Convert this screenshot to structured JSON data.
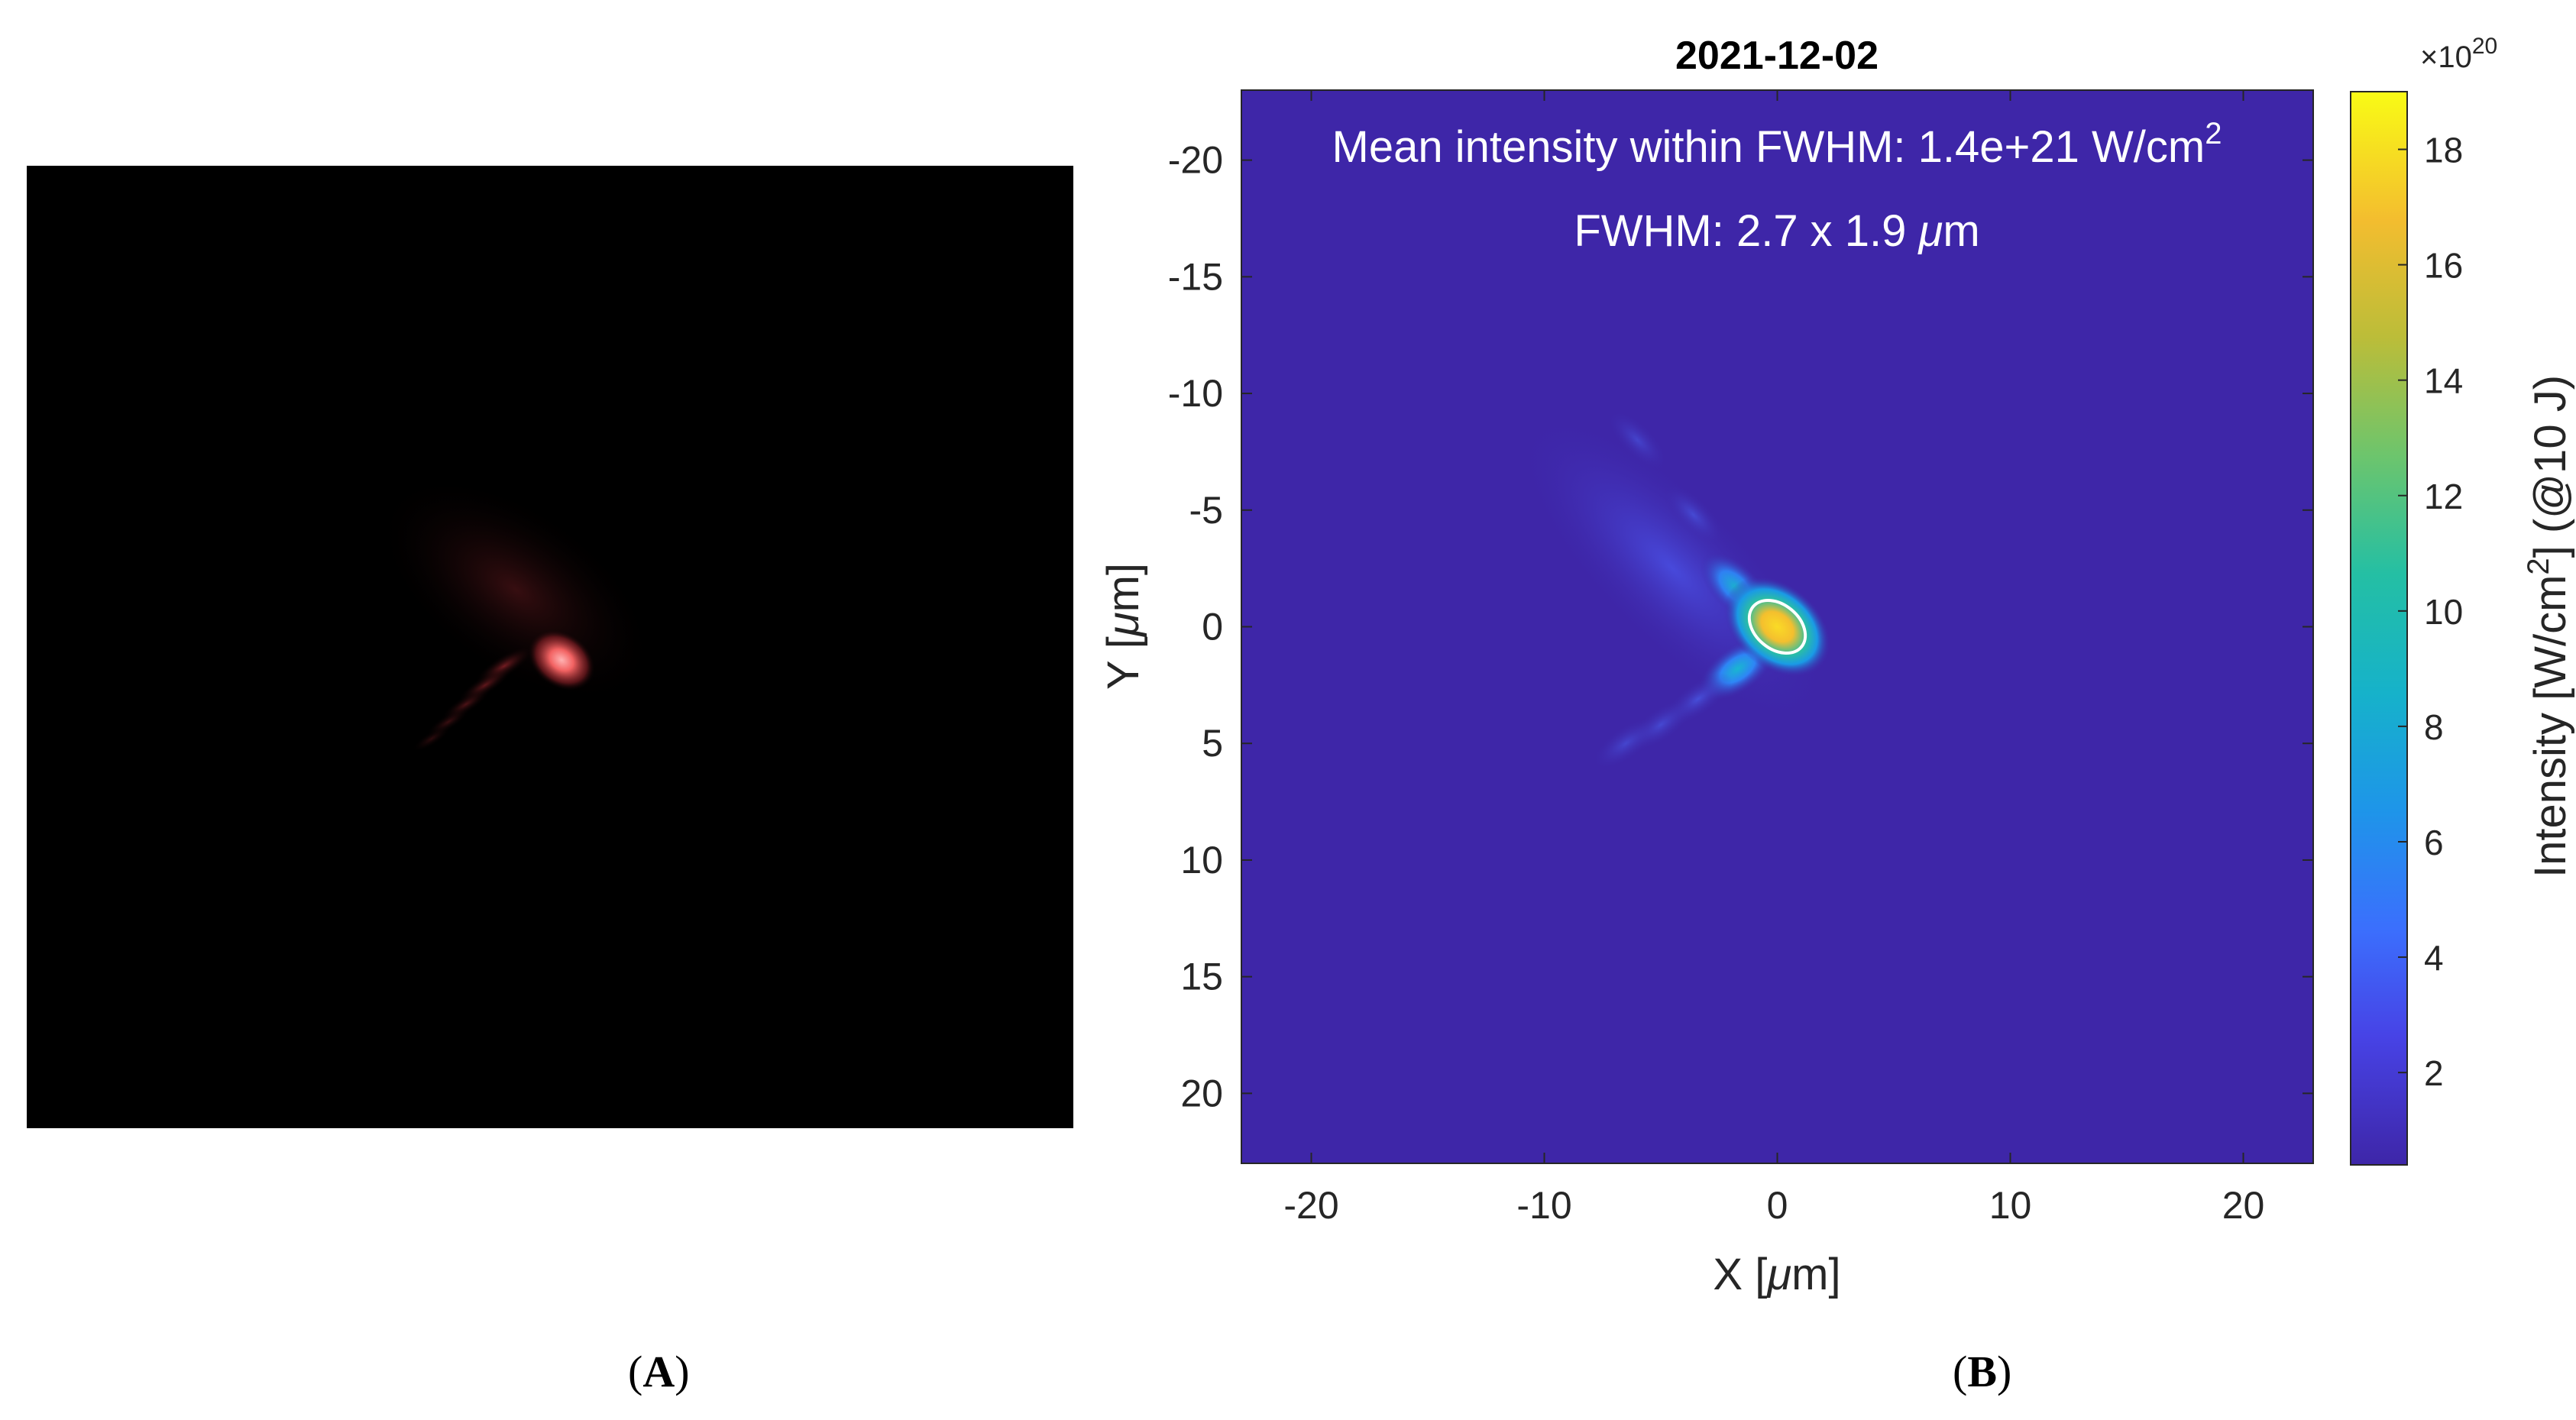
{
  "panel_a": {
    "caption_open": "(",
    "caption_letter": "A",
    "caption_close": ")"
  },
  "panel_b": {
    "caption_open": "(",
    "caption_letter": "B",
    "caption_close": ")"
  },
  "chart_data": {
    "type": "heatmap",
    "title": "2021-12-02",
    "annotations": {
      "mean_intensity_prefix": "Mean intensity within FWHM: 1.4e+21 W/cm",
      "mean_intensity_sup": "2",
      "fwhm_prefix": "FWHM: 2.7 x 1.9 ",
      "fwhm_mu": "μ",
      "fwhm_unit": "m"
    },
    "xlabel": {
      "prefix": "X [",
      "mu": "μ",
      "suffix": "m]"
    },
    "ylabel": {
      "prefix": "Y [",
      "mu": "μ",
      "suffix": "m]"
    },
    "xlim": [
      -23,
      23
    ],
    "ylim": [
      -23,
      23
    ],
    "y_reversed": true,
    "xticks": [
      -20,
      -10,
      0,
      10,
      20
    ],
    "yticks": [
      -20,
      -15,
      -10,
      -5,
      0,
      5,
      10,
      15,
      20
    ],
    "colorbar": {
      "range": [
        0.4,
        19
      ],
      "ticks": [
        2,
        4,
        6,
        8,
        10,
        12,
        14,
        16,
        18
      ],
      "exponent_prefix": "×10",
      "exponent_power": "20",
      "label_prefix": "Intensity [W/cm",
      "label_sup": "2",
      "label_suffix": "] (@10 J)",
      "colormap": "parula"
    },
    "focal_spot": {
      "peak_x": 0,
      "peak_y": 0,
      "peak_value": 17.5,
      "fwhm_x": 2.7,
      "fwhm_y": 1.9,
      "contour_color": "#ffffff"
    },
    "lobes": [
      {
        "x": -1.7,
        "y": 1.8,
        "value": 7.5
      },
      {
        "x": -3.4,
        "y": 3.1,
        "value": 3.0
      },
      {
        "x": -5.0,
        "y": 4.2,
        "value": 2.0
      },
      {
        "x": -6.5,
        "y": 5.0,
        "value": 1.5
      },
      {
        "x": -1.8,
        "y": -1.7,
        "value": 5.5
      },
      {
        "x": -3.6,
        "y": -4.8,
        "value": 2.0
      },
      {
        "x": -6.0,
        "y": -8.0,
        "value": 1.2
      }
    ],
    "colors": {
      "background": "#3e26a8",
      "peak": "#f9d32b",
      "mid": "#16b2ca"
    }
  }
}
